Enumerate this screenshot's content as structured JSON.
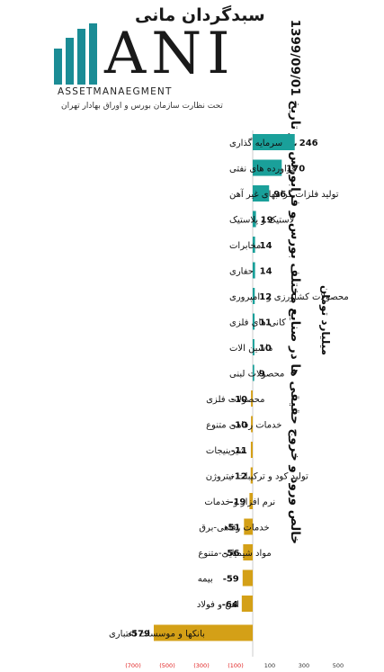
{
  "logo": {
    "brand_fa": "سبدگردان مانی",
    "brand_mark": "ANI",
    "brand_en": "ASSETMANAEGMENT",
    "brand_sub": "تحت نظارت سازمان بورس و اوراق بهادار تهران",
    "colors": {
      "accent": "#1b8c95"
    }
  },
  "chart_data": {
    "type": "bar",
    "orientation": "horizontal",
    "title": "خالص ورود و خروج حقیقی ها در صنایع مختلف بورس و فرابورس در تاریخ 1399/09/01",
    "unit_label": "میلیارد تومان",
    "categories": [
      "سرمایه گذاری",
      "فراورده های نفتی",
      "تولید فلزات گرانبهای غیر آهن",
      "لاستیک و پلاستیک",
      "مخابرات",
      "حفاری",
      "محصولات کشاورزی و دامپروری",
      "کانی های فلزی",
      "ماشین الات",
      "محصولات لبنی",
      "محصولات فلزی",
      "خدمات رفاهی متنوع",
      "شیرینیجات",
      "تولید کود و ترکیبات نیتروژن",
      "نرم افزار و خدمات",
      "خدمات رفاهی-برق",
      "مواد شیمیایی-متنوع",
      "بیمه",
      "اهن و فولاد",
      "بانکها و موسسات اعتباری"
    ],
    "values": [
      246,
      170,
      96,
      19,
      14,
      14,
      12,
      11,
      10,
      9,
      -10,
      -10,
      -11,
      -12,
      -19,
      -51,
      -56,
      -59,
      -64,
      -579
    ],
    "value_labels": [
      "246",
      "170",
      "96",
      "19",
      "14",
      "14",
      "12",
      "11",
      "10",
      "9",
      "-10",
      "-10",
      "-11",
      "-12",
      "-19",
      "-51",
      "-56",
      "-59",
      "-64",
      "-579"
    ],
    "xlim": [
      -700,
      500
    ],
    "ticks": [
      -700,
      -500,
      -300,
      -100,
      100,
      300,
      500
    ],
    "tick_labels": [
      "(700)",
      "(500)",
      "(300)",
      "(100)",
      "100",
      "300",
      "500"
    ],
    "colors": {
      "positive": "#1aa09a",
      "negative": "#d4a017",
      "negative_tick": "#e02020",
      "positive_tick": "#333333"
    }
  }
}
